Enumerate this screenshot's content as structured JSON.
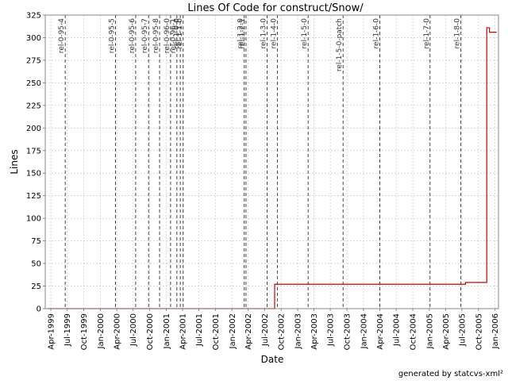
{
  "chart_data": {
    "type": "line",
    "title": "Lines Of Code for construct/Snow/",
    "xlabel": "Date",
    "ylabel": "Lines",
    "footer": "generated by statcvs-xml²",
    "x_range": [
      "1999-03-01",
      "2006-01-20"
    ],
    "ylim": [
      0,
      325
    ],
    "y_ticks": [
      0,
      25,
      50,
      75,
      100,
      125,
      150,
      175,
      200,
      225,
      250,
      275,
      300,
      325
    ],
    "x_ticks": [
      {
        "date": "1999-04-01",
        "label": "Apr-1999"
      },
      {
        "date": "1999-07-01",
        "label": "Jul-1999"
      },
      {
        "date": "1999-10-01",
        "label": "Oct-1999"
      },
      {
        "date": "2000-01-01",
        "label": "Jan-2000"
      },
      {
        "date": "2000-04-01",
        "label": "Apr-2000"
      },
      {
        "date": "2000-07-01",
        "label": "Jul-2000"
      },
      {
        "date": "2000-10-01",
        "label": "Oct-2000"
      },
      {
        "date": "2001-01-01",
        "label": "Jan-2001"
      },
      {
        "date": "2001-04-01",
        "label": "Apr-2001"
      },
      {
        "date": "2001-07-01",
        "label": "Jul-2001"
      },
      {
        "date": "2001-10-01",
        "label": "Oct-2001"
      },
      {
        "date": "2002-01-01",
        "label": "Jan-2002"
      },
      {
        "date": "2002-04-01",
        "label": "Apr-2002"
      },
      {
        "date": "2002-07-01",
        "label": "Jul-2002"
      },
      {
        "date": "2002-10-01",
        "label": "Oct-2002"
      },
      {
        "date": "2003-01-01",
        "label": "Jan-2003"
      },
      {
        "date": "2003-04-01",
        "label": "Apr-2003"
      },
      {
        "date": "2003-07-01",
        "label": "Jul-2003"
      },
      {
        "date": "2003-10-01",
        "label": "Oct-2003"
      },
      {
        "date": "2004-01-01",
        "label": "Jan-2004"
      },
      {
        "date": "2004-04-01",
        "label": "Apr-2004"
      },
      {
        "date": "2004-07-01",
        "label": "Jul-2004"
      },
      {
        "date": "2004-10-01",
        "label": "Oct-2004"
      },
      {
        "date": "2005-01-01",
        "label": "Jan-2005"
      },
      {
        "date": "2005-04-01",
        "label": "Apr-2005"
      },
      {
        "date": "2005-07-01",
        "label": "Jul-2005"
      },
      {
        "date": "2005-10-01",
        "label": "Oct-2005"
      },
      {
        "date": "2006-01-01",
        "label": "Jan-2006"
      }
    ],
    "grid": true,
    "series": [
      {
        "name": "",
        "color": "#cc0000",
        "step": true,
        "points": [
          {
            "x": "1999-03-15",
            "y": 0
          },
          {
            "x": "2002-08-25",
            "y": 0
          },
          {
            "x": "2002-08-26",
            "y": 27
          },
          {
            "x": "2005-07-20",
            "y": 27
          },
          {
            "x": "2005-07-21",
            "y": 29
          },
          {
            "x": "2005-11-15",
            "y": 29
          },
          {
            "x": "2005-11-16",
            "y": 311
          },
          {
            "x": "2005-12-01",
            "y": 306
          },
          {
            "x": "2006-01-10",
            "y": 306
          }
        ]
      }
    ],
    "releases": [
      {
        "date": "1999-06-20",
        "label": "rel-0-95-4"
      },
      {
        "date": "2000-03-25",
        "label": "rel-0-95-5"
      },
      {
        "date": "2000-07-15",
        "label": "rel-0-95-6"
      },
      {
        "date": "2000-09-25",
        "label": "rel-0-95-7"
      },
      {
        "date": "2000-11-25",
        "label": "rel-0-95-8"
      },
      {
        "date": "2001-01-25",
        "label": "rel-0-96-0"
      },
      {
        "date": "2001-03-01",
        "label": "rel-0-96-1"
      },
      {
        "date": "2001-03-20",
        "label": "rel-1-0-0"
      },
      {
        "date": "2001-04-05",
        "label": "rel-1-1-0"
      },
      {
        "date": "2002-03-10",
        "label": "rel-1-2-0"
      },
      {
        "date": "2002-03-20",
        "label": "rel-1-2-1"
      },
      {
        "date": "2002-07-15",
        "label": "rel-1-3-0"
      },
      {
        "date": "2002-09-10",
        "label": "rel-1-4-0"
      },
      {
        "date": "2003-02-28",
        "label": "rel-1-5-0"
      },
      {
        "date": "2003-09-10",
        "label": "rel-1-5-0-patch"
      },
      {
        "date": "2004-04-01",
        "label": "rel-1-6-0"
      },
      {
        "date": "2005-01-05",
        "label": "rel-1-7-0"
      },
      {
        "date": "2005-06-25",
        "label": "rel-1-8-0"
      }
    ]
  }
}
